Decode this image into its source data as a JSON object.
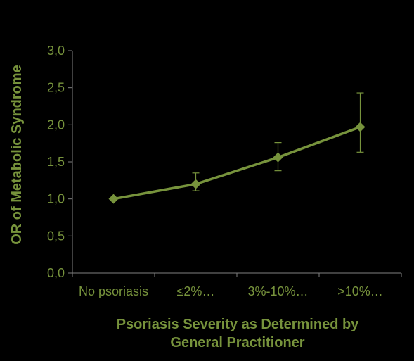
{
  "colors": {
    "background": "#000000",
    "text": "#77933C",
    "series": "#77933C",
    "axis": "#7F7F7F"
  },
  "chart_data": {
    "type": "line",
    "title": "",
    "xlabel_lines": [
      "Psoriasis Severity as Determined by",
      "General Practitioner"
    ],
    "ylabel": "OR of Metabolic Syndrome",
    "categories": [
      "No psoriasis",
      "≤2%…",
      "3%-10%…",
      ">10%…"
    ],
    "y_tick_labels": [
      "0,0",
      "0,5",
      "1,0",
      "1,5",
      "2,0",
      "2,5",
      "3,0"
    ],
    "ylim": [
      0,
      3.0
    ],
    "grid": false,
    "legend": "none",
    "marker": "diamond",
    "series": [
      {
        "values": [
          1.0,
          1.2,
          1.56,
          1.97
        ],
        "error_low": [
          1.0,
          1.11,
          1.38,
          1.63
        ],
        "error_high": [
          1.0,
          1.35,
          1.76,
          2.43
        ]
      }
    ]
  }
}
